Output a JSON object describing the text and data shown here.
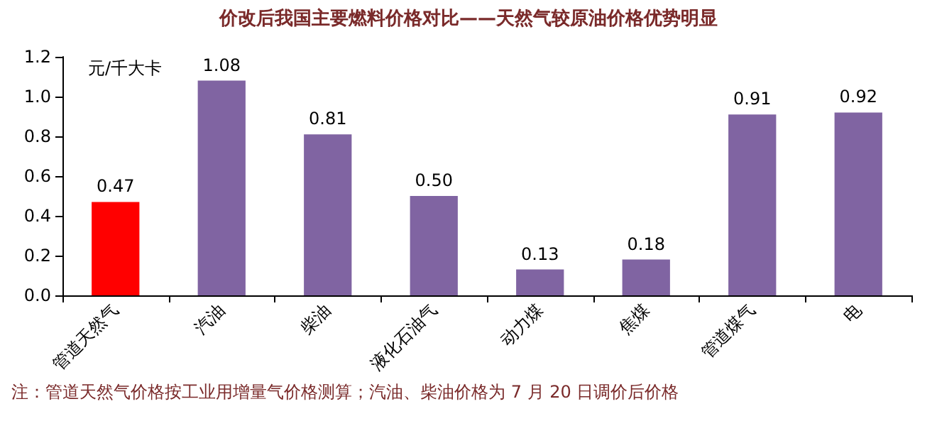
{
  "chart_data": {
    "type": "bar",
    "title": "价改后我国主要燃料价格对比——天然气较原油价格优势明显",
    "ylabel": "元/千大卡",
    "categories": [
      "管道天然气",
      "汽油",
      "柴油",
      "液化石油气",
      "动力煤",
      "焦煤",
      "管道煤气",
      "电"
    ],
    "values": [
      0.47,
      1.08,
      0.81,
      0.5,
      0.13,
      0.18,
      0.91,
      0.92
    ],
    "value_labels": [
      "0.47",
      "1.08",
      "0.81",
      "0.50",
      "0.13",
      "0.18",
      "0.91",
      "0.92"
    ],
    "colors": [
      "#ff0000",
      "#8064a2",
      "#8064a2",
      "#8064a2",
      "#8064a2",
      "#8064a2",
      "#8064a2",
      "#8064a2"
    ],
    "ylim": [
      0,
      1.2
    ],
    "yticks": [
      {
        "value": 0,
        "label": "0.0"
      },
      {
        "value": 0.2,
        "label": "0.2"
      },
      {
        "value": 0.4,
        "label": "0.4"
      },
      {
        "value": 0.6,
        "label": "0.6"
      },
      {
        "value": 0.8,
        "label": "0.8"
      },
      {
        "value": 1.0,
        "label": "1.0"
      },
      {
        "value": 1.2,
        "label": "1.2"
      }
    ],
    "grid": false,
    "annotations": [
      "注：管道天然气价格按工业用增量气价格测算；汽油、柴油价格为 7 月 20 日调价后价格"
    ]
  }
}
